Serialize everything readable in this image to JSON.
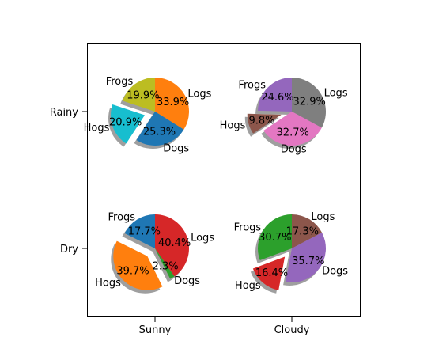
{
  "chart_data": {
    "type": "pie",
    "layout": "2x2 grid of exploded pies with shadows",
    "columns": [
      "Sunny",
      "Cloudy"
    ],
    "rows": [
      "Rainy",
      "Dry"
    ],
    "grid": false,
    "pies": [
      {
        "row": "Rainy",
        "column": "Sunny",
        "slices": [
          {
            "label": "Logs",
            "value": 33.9,
            "pct_label": "33.9%",
            "color": "#ff7f0e",
            "explode": 0
          },
          {
            "label": "Dogs",
            "value": 25.3,
            "pct_label": "25.3%",
            "color": "#1f77b4",
            "explode": 0
          },
          {
            "label": "Hogs",
            "value": 20.9,
            "pct_label": "20.9%",
            "color": "#17becf",
            "explode": 0.32
          },
          {
            "label": "Frogs",
            "value": 19.9,
            "pct_label": "19.9%",
            "color": "#bcbd22",
            "explode": 0
          }
        ]
      },
      {
        "row": "Rainy",
        "column": "Cloudy",
        "slices": [
          {
            "label": "Logs",
            "value": 32.9,
            "pct_label": "32.9%",
            "color": "#7f7f7f",
            "explode": 0
          },
          {
            "label": "Dogs",
            "value": 32.7,
            "pct_label": "32.7%",
            "color": "#e377c2",
            "explode": 0
          },
          {
            "label": "Hogs",
            "value": 9.8,
            "pct_label": "9.8%",
            "color": "#8c564b",
            "explode": 0.32
          },
          {
            "label": "Frogs",
            "value": 24.6,
            "pct_label": "24.6%",
            "color": "#9467bd",
            "explode": 0
          }
        ]
      },
      {
        "row": "Dry",
        "column": "Sunny",
        "slices": [
          {
            "label": "Logs",
            "value": 40.4,
            "pct_label": "40.4%",
            "color": "#d62728",
            "explode": 0
          },
          {
            "label": "Dogs",
            "value": 2.3,
            "pct_label": "2.3%",
            "color": "#2ca02c",
            "explode": 0
          },
          {
            "label": "Hogs",
            "value": 39.7,
            "pct_label": "39.7%",
            "color": "#ff7f0e",
            "explode": 0.32
          },
          {
            "label": "Frogs",
            "value": 17.7,
            "pct_label": "17.7%",
            "color": "#1f77b4",
            "explode": 0
          }
        ]
      },
      {
        "row": "Dry",
        "column": "Cloudy",
        "slices": [
          {
            "label": "Logs",
            "value": 17.3,
            "pct_label": "17.3%",
            "color": "#8c564b",
            "explode": 0
          },
          {
            "label": "Dogs",
            "value": 35.7,
            "pct_label": "35.7%",
            "color": "#9467bd",
            "explode": 0
          },
          {
            "label": "Hogs",
            "value": 16.4,
            "pct_label": "16.4%",
            "color": "#d62728",
            "explode": 0.32
          },
          {
            "label": "Frogs",
            "value": 30.7,
            "pct_label": "30.7%",
            "color": "#2ca02c",
            "explode": 0
          }
        ]
      }
    ]
  }
}
